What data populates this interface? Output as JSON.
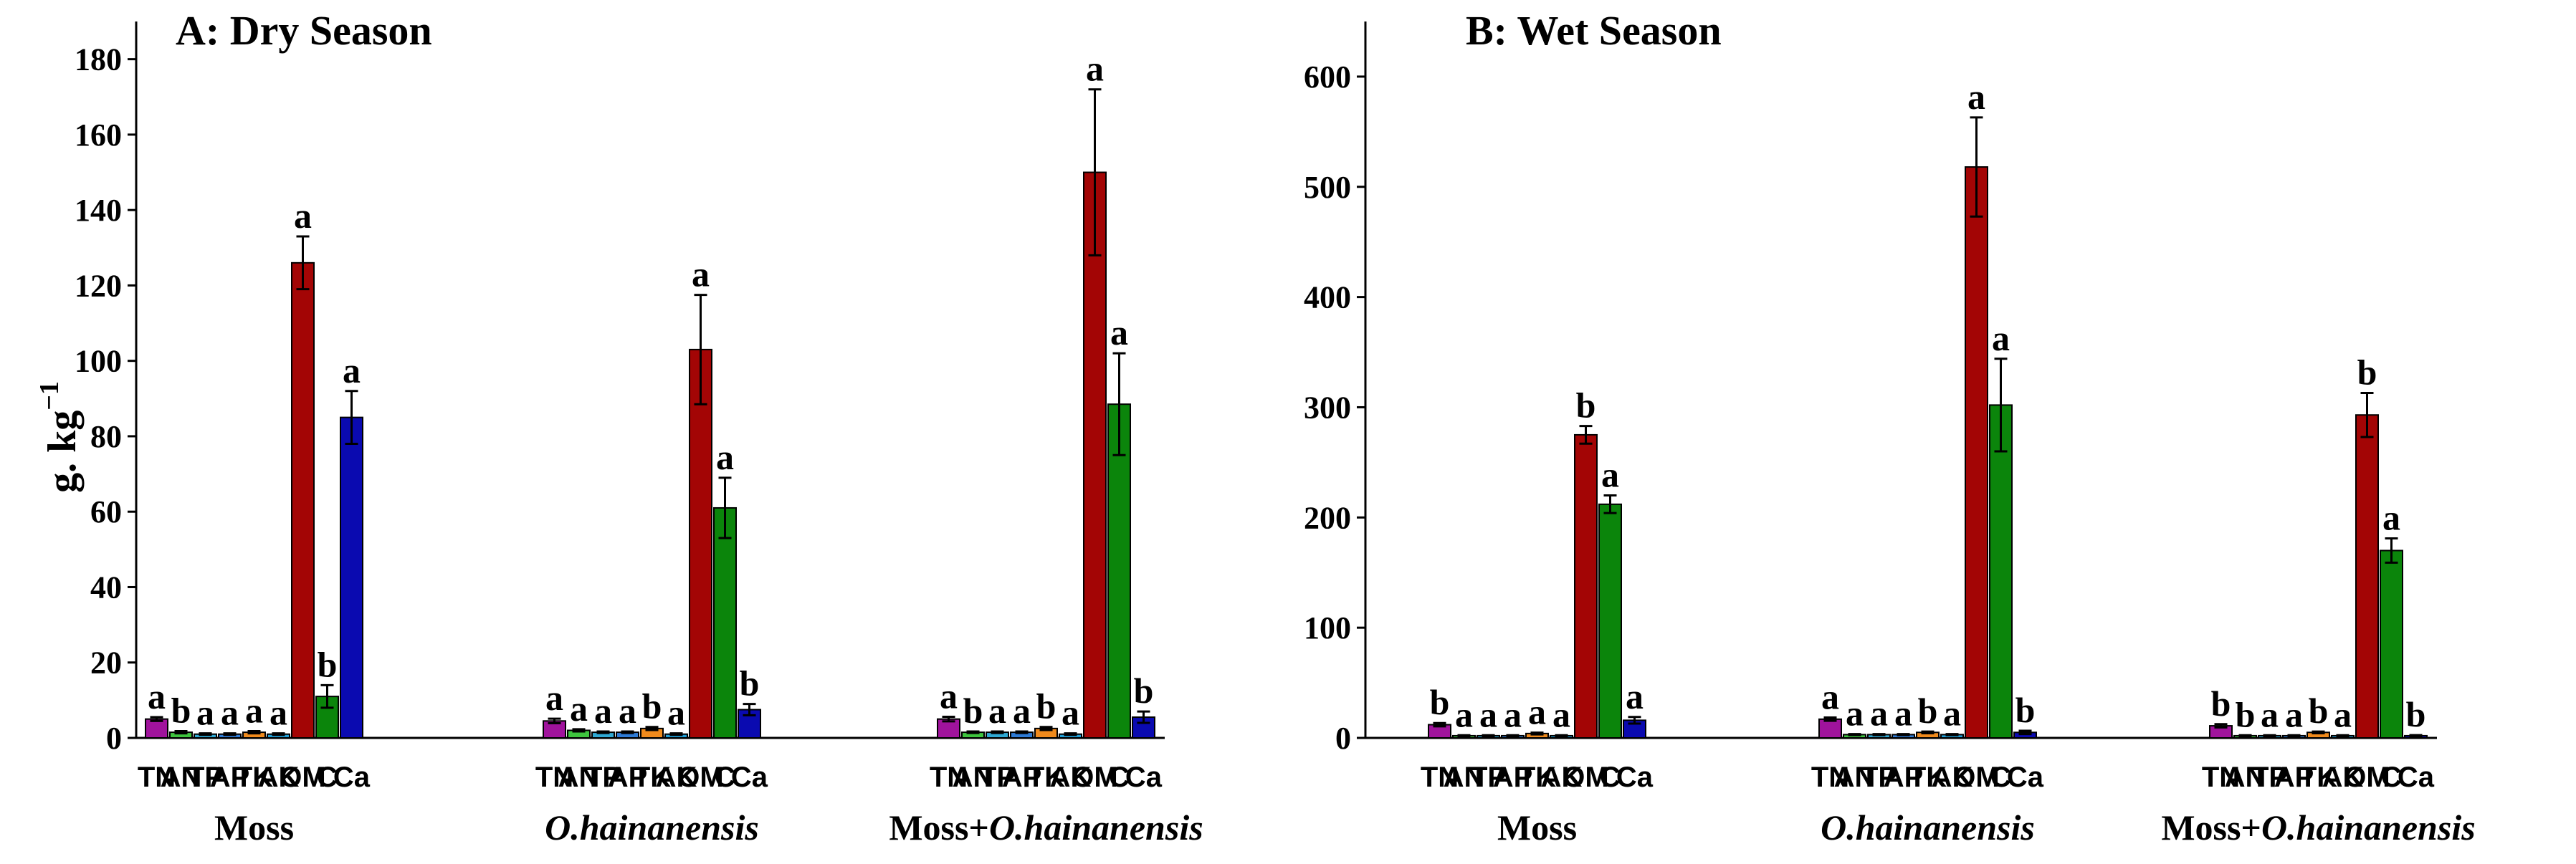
{
  "figure": {
    "ylabel_main": "g. kg",
    "ylabel_sup": "−1"
  },
  "chart_data": [
    {
      "type": "bar",
      "title": "A: Dry Season",
      "xlabel": "",
      "ylabel": "g. kg−1",
      "ylim": [
        0,
        190
      ],
      "yticks": [
        0,
        20,
        40,
        60,
        80,
        100,
        120,
        140,
        160,
        180
      ],
      "variables": [
        "TN",
        "AN",
        "TP",
        "AP",
        "TK",
        "AK",
        "OM",
        "C",
        "Ca"
      ],
      "colors": [
        "#a0139c",
        "#3ec43e",
        "#2fa9d4",
        "#2e7bd6",
        "#f08a1c",
        "#1f9ed6",
        "#a30505",
        "#0b850b",
        "#0a0ab0"
      ],
      "groups": [
        {
          "name": "Moss",
          "name_parts": [
            {
              "text": "Moss",
              "italic": false
            }
          ],
          "values": [
            5,
            1.5,
            1,
            1,
            1.5,
            1,
            126,
            11,
            85
          ],
          "errors": [
            0.5,
            0.3,
            0.2,
            0.2,
            0.3,
            0.2,
            7,
            3,
            7
          ],
          "letters": [
            "a",
            "b",
            "a",
            "a",
            "a",
            "a",
            "a",
            "b",
            "a"
          ]
        },
        {
          "name": "O.hainanensis",
          "name_parts": [
            {
              "text": "O.hainanensis",
              "italic": true
            }
          ],
          "values": [
            4.5,
            2,
            1.5,
            1.5,
            2.5,
            1,
            103,
            61,
            7.5
          ],
          "errors": [
            0.6,
            0.3,
            0.2,
            0.2,
            0.4,
            0.2,
            14.5,
            8,
            1.5
          ],
          "letters": [
            "a",
            "a",
            "a",
            "a",
            "b",
            "a",
            "a",
            "a",
            "b"
          ]
        },
        {
          "name": "Moss+O.hainanensis",
          "name_parts": [
            {
              "text": "Moss+",
              "italic": false
            },
            {
              "text": "O.hainanensis",
              "italic": true
            }
          ],
          "values": [
            5,
            1.5,
            1.5,
            1.5,
            2.5,
            1,
            150,
            88.5,
            5.5
          ],
          "errors": [
            0.6,
            0.2,
            0.2,
            0.2,
            0.4,
            0.2,
            22,
            13.5,
            1.5
          ],
          "letters": [
            "a",
            "b",
            "a",
            "a",
            "b",
            "a",
            "a",
            "a",
            "b"
          ]
        }
      ]
    },
    {
      "type": "bar",
      "title": "B: Wet Season",
      "xlabel": "",
      "ylabel": "",
      "ylim": [
        0,
        650
      ],
      "yticks": [
        0,
        100,
        200,
        300,
        400,
        500,
        600
      ],
      "variables": [
        "TN",
        "AN",
        "TP",
        "AP",
        "TK",
        "AK",
        "OM",
        "C",
        "Ca"
      ],
      "colors": [
        "#a0139c",
        "#3ec43e",
        "#2fa9d4",
        "#2e7bd6",
        "#f08a1c",
        "#1f9ed6",
        "#a30505",
        "#0b850b",
        "#0a0ab0"
      ],
      "groups": [
        {
          "name": "Moss",
          "name_parts": [
            {
              "text": "Moss",
              "italic": false
            }
          ],
          "values": [
            12,
            2,
            2,
            2,
            4,
            2,
            275,
            212,
            16
          ],
          "errors": [
            1.5,
            0.4,
            0.4,
            0.4,
            0.8,
            0.4,
            8,
            8,
            3
          ],
          "letters": [
            "b",
            "a",
            "a",
            "a",
            "a",
            "a",
            "b",
            "a",
            "a"
          ]
        },
        {
          "name": "O.hainanensis",
          "name_parts": [
            {
              "text": "O.hainanensis",
              "italic": true
            }
          ],
          "values": [
            17,
            3,
            3,
            3,
            5,
            3,
            518,
            302,
            5
          ],
          "errors": [
            1.5,
            0.5,
            0.5,
            0.5,
            0.8,
            0.5,
            45,
            42,
            1.5
          ],
          "letters": [
            "a",
            "a",
            "a",
            "a",
            "b",
            "a",
            "a",
            "a",
            "b"
          ]
        },
        {
          "name": "Moss+O.hainanensis",
          "name_parts": [
            {
              "text": "Moss+",
              "italic": false
            },
            {
              "text": "O.hainanensis",
              "italic": true
            }
          ],
          "values": [
            11,
            2,
            2,
            2,
            5,
            2,
            293,
            170,
            2
          ],
          "errors": [
            1.5,
            0.4,
            0.4,
            0.4,
            0.8,
            0.4,
            20,
            11,
            0.5
          ],
          "letters": [
            "b",
            "b",
            "a",
            "a",
            "b",
            "a",
            "b",
            "a",
            "b"
          ]
        }
      ]
    }
  ]
}
